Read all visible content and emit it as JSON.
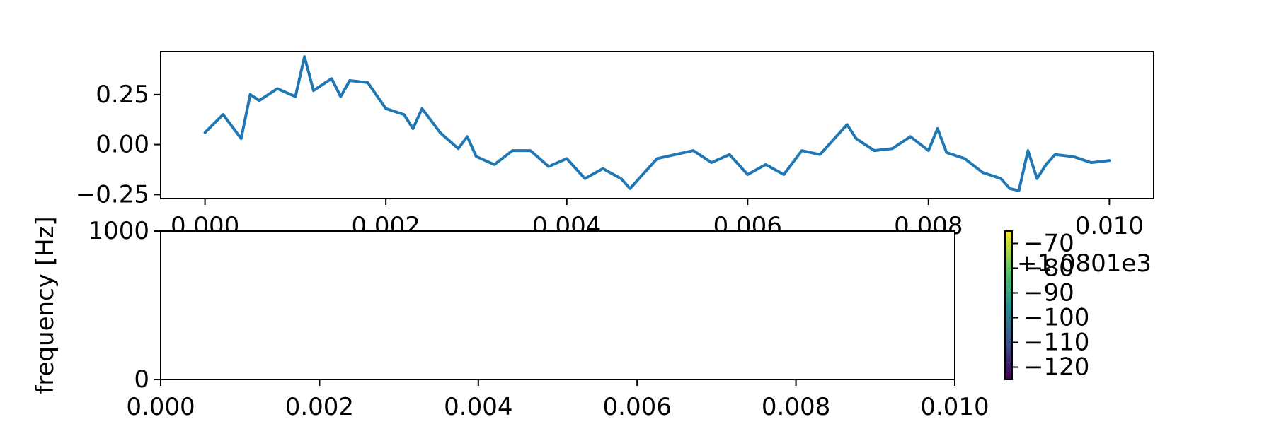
{
  "chart_data": [
    {
      "type": "line",
      "title": "",
      "xlabel": "",
      "ylabel": "",
      "xlim": [
        -0.00049,
        0.01049
      ],
      "ylim": [
        -0.27,
        0.465
      ],
      "xticks": [
        0.0,
        0.002,
        0.004,
        0.006,
        0.008,
        0.01
      ],
      "xtick_labels": [
        "0.000",
        "0.002",
        "0.004",
        "0.006",
        "0.008",
        "0.010"
      ],
      "yticks": [
        0.25,
        0.0,
        -0.25
      ],
      "ytick_labels": [
        "0.25",
        "0.00",
        "−0.25"
      ],
      "line_color": "#1f77b4",
      "series": [
        {
          "x": [
            0.0,
            0.0002,
            0.0004,
            0.0005,
            0.0006,
            0.0008,
            0.001,
            0.0011,
            0.0012,
            0.0014,
            0.0015,
            0.0016,
            0.0018,
            0.002,
            0.0022,
            0.0023,
            0.0024,
            0.0026,
            0.0028,
            0.0029,
            0.003,
            0.0032,
            0.0034,
            0.0036,
            0.0038,
            0.004,
            0.0042,
            0.0044,
            0.0046,
            0.0047,
            0.0048,
            0.005,
            0.0052,
            0.0054,
            0.0056,
            0.0058,
            0.006,
            0.0062,
            0.0064,
            0.0066,
            0.0068,
            0.007,
            0.0071,
            0.0072,
            0.0074,
            0.0076,
            0.0078,
            0.008,
            0.0081,
            0.0082,
            0.0084,
            0.0086,
            0.0088,
            0.0089,
            0.009,
            0.0091,
            0.0092,
            0.0093,
            0.0094,
            0.0096,
            0.0098,
            0.01
          ],
          "y": [
            0.06,
            0.15,
            0.03,
            0.25,
            0.22,
            0.28,
            0.24,
            0.44,
            0.27,
            0.33,
            0.24,
            0.32,
            0.31,
            0.18,
            0.15,
            0.08,
            0.18,
            0.06,
            -0.02,
            0.04,
            -0.06,
            -0.1,
            -0.03,
            -0.03,
            -0.11,
            -0.07,
            -0.17,
            -0.12,
            -0.17,
            -0.22,
            -0.17,
            -0.07,
            -0.05,
            -0.03,
            -0.09,
            -0.05,
            -0.15,
            -0.1,
            -0.15,
            -0.03,
            -0.05,
            0.05,
            0.1,
            0.03,
            -0.03,
            -0.02,
            0.04,
            -0.03,
            0.08,
            -0.04,
            -0.07,
            -0.14,
            -0.17,
            -0.22,
            -0.23,
            -0.03,
            -0.17,
            -0.1,
            -0.05,
            -0.06,
            -0.09,
            -0.08
          ]
        }
      ]
    },
    {
      "type": "heatmap",
      "title": "",
      "xlabel": "",
      "ylabel": "frequency [Hz]",
      "xlim": [
        0.0,
        0.01
      ],
      "ylim": [
        0,
        1000
      ],
      "xticks": [
        0.0,
        0.002,
        0.004,
        0.006,
        0.008,
        0.01
      ],
      "xtick_labels": [
        "0.000",
        "0.002",
        "0.004",
        "0.006",
        "0.008",
        "0.010"
      ],
      "yticks": [
        1000,
        0
      ],
      "ytick_labels": [
        "1000",
        "0"
      ],
      "colorbar": {
        "colormap": "viridis",
        "range": [
          -125,
          -65
        ],
        "ticks": [
          -70,
          -80,
          -90,
          -100,
          -110,
          -120
        ],
        "tick_labels": [
          "−70",
          "−80",
          "−90",
          "−100",
          "−110",
          "−120"
        ],
        "offset_label": "+1.0801e3",
        "colors": [
          "#440154",
          "#3b528b",
          "#21918c",
          "#5ec962",
          "#fde725"
        ]
      }
    }
  ]
}
